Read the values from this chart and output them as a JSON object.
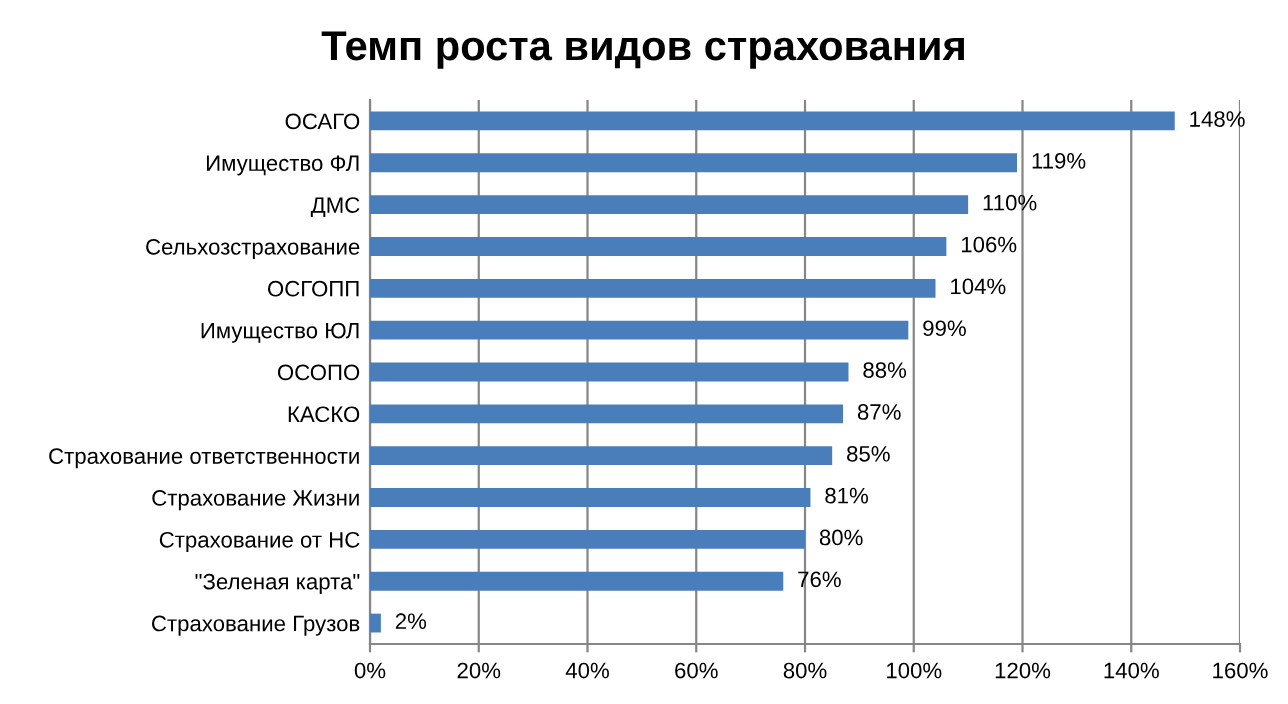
{
  "chart_data": {
    "type": "bar",
    "orientation": "horizontal",
    "title": "Темп роста видов страхования",
    "categories": [
      "ОСАГО",
      "Имущество ФЛ",
      "ДМС",
      "Сельхозстрахование",
      "ОСГОПП",
      "Имущество ЮЛ",
      "ОСОПО",
      "КАСКО",
      "Страхование ответственности",
      "Страхование Жизни",
      "Страхование от НС",
      "\"Зеленая карта\"",
      "Страхование Грузов"
    ],
    "values": [
      148,
      119,
      110,
      106,
      104,
      99,
      88,
      87,
      85,
      81,
      80,
      76,
      2
    ],
    "value_labels": [
      "148%",
      "119%",
      "110%",
      "106%",
      "104%",
      "99%",
      "88%",
      "87%",
      "85%",
      "81%",
      "80%",
      "76%",
      "2%"
    ],
    "color": "#4a7ebb",
    "xlim": [
      0,
      160
    ],
    "xticks": [
      {
        "value": 0,
        "label": "0%"
      },
      {
        "value": 20,
        "label": "20%"
      },
      {
        "value": 40,
        "label": "40%"
      },
      {
        "value": 60,
        "label": "60%"
      },
      {
        "value": 80,
        "label": "80%"
      },
      {
        "value": 100,
        "label": "100%"
      },
      {
        "value": 120,
        "label": "120%"
      },
      {
        "value": 140,
        "label": "140%"
      },
      {
        "value": 160,
        "label": "160%"
      }
    ],
    "grid": "x"
  }
}
